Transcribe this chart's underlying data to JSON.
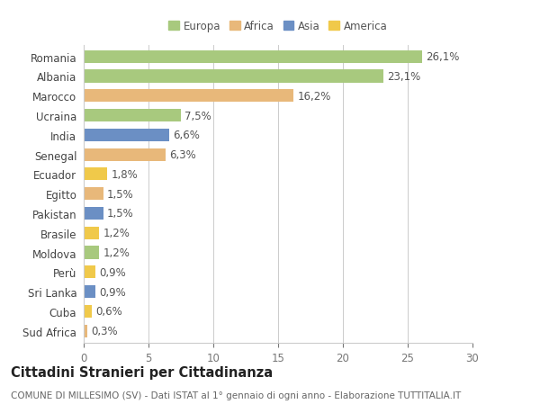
{
  "countries": [
    "Romania",
    "Albania",
    "Marocco",
    "Ucraina",
    "India",
    "Senegal",
    "Ecuador",
    "Egitto",
    "Pakistan",
    "Brasile",
    "Moldova",
    "Perù",
    "Sri Lanka",
    "Cuba",
    "Sud Africa"
  ],
  "values": [
    26.1,
    23.1,
    16.2,
    7.5,
    6.6,
    6.3,
    1.8,
    1.5,
    1.5,
    1.2,
    1.2,
    0.9,
    0.9,
    0.6,
    0.3
  ],
  "labels": [
    "26,1%",
    "23,1%",
    "16,2%",
    "7,5%",
    "6,6%",
    "6,3%",
    "1,8%",
    "1,5%",
    "1,5%",
    "1,2%",
    "1,2%",
    "0,9%",
    "0,9%",
    "0,6%",
    "0,3%"
  ],
  "continents": [
    "Europa",
    "Europa",
    "Africa",
    "Europa",
    "Asia",
    "Africa",
    "America",
    "Africa",
    "Asia",
    "America",
    "Europa",
    "America",
    "Asia",
    "America",
    "Africa"
  ],
  "continent_colors": {
    "Europa": "#a8c97e",
    "Africa": "#e8b87a",
    "Asia": "#6b8fc4",
    "America": "#f0c94a"
  },
  "legend_order": [
    "Europa",
    "Africa",
    "Asia",
    "America"
  ],
  "title": "Cittadini Stranieri per Cittadinanza",
  "subtitle": "COMUNE DI MILLESIMO (SV) - Dati ISTAT al 1° gennaio di ogni anno - Elaborazione TUTTITALIA.IT",
  "xlim": [
    0,
    30
  ],
  "xticks": [
    0,
    5,
    10,
    15,
    20,
    25,
    30
  ],
  "background_color": "#ffffff",
  "grid_color": "#cccccc",
  "bar_height": 0.65,
  "label_fontsize": 8.5,
  "tick_fontsize": 8.5,
  "title_fontsize": 10.5,
  "subtitle_fontsize": 7.5
}
